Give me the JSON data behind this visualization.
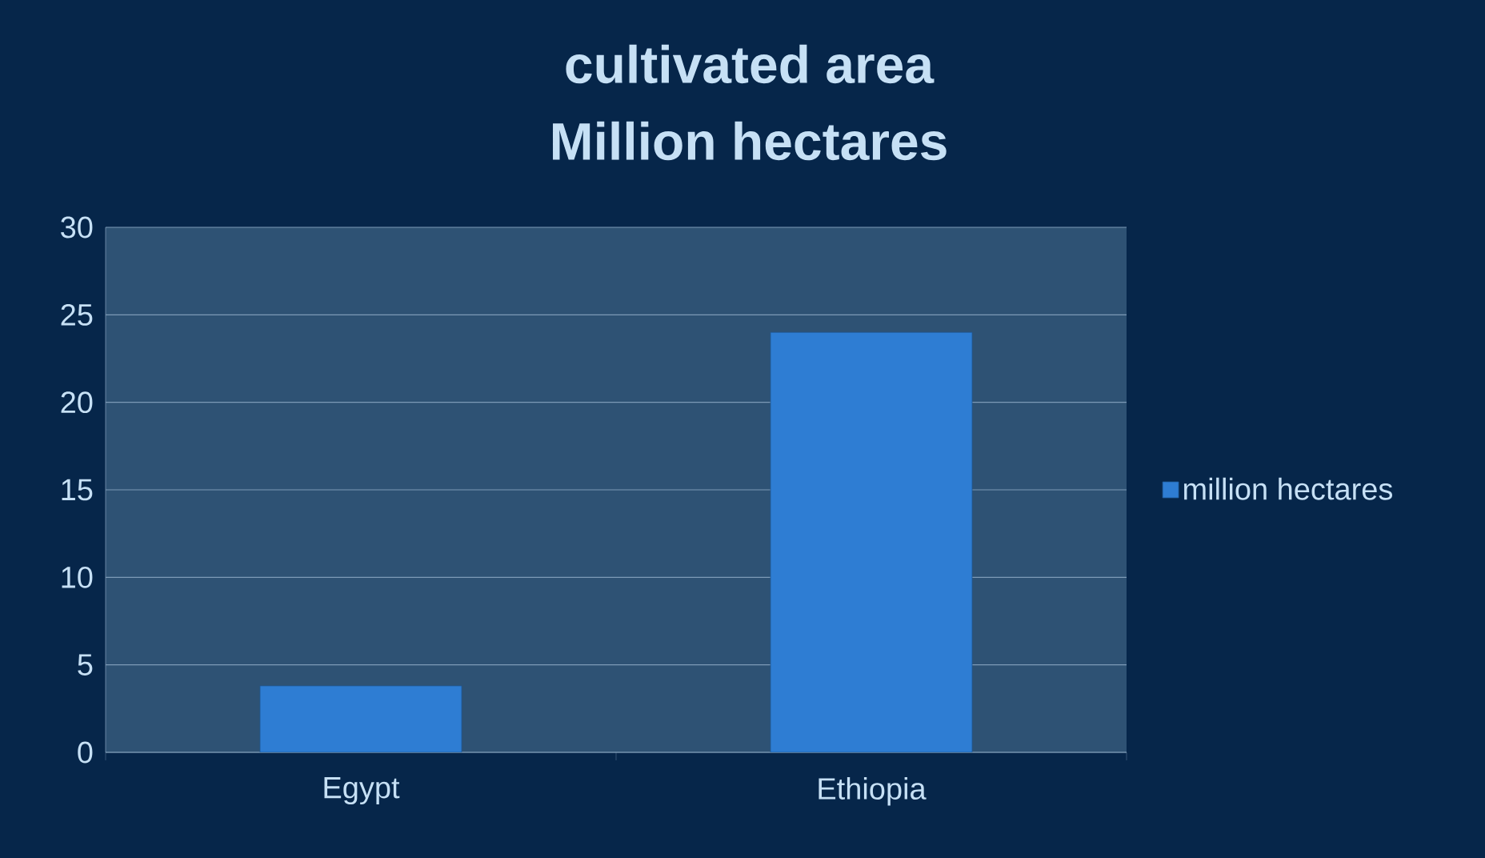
{
  "chart_data": {
    "type": "bar",
    "title": "cultivated area",
    "subtitle": "Million hectares",
    "categories": [
      "Egypt",
      "Ethiopia"
    ],
    "series": [
      {
        "name": "million hectares",
        "color": "#2e7dd3",
        "values": [
          3.8,
          24
        ]
      }
    ],
    "ylim": [
      0,
      30
    ],
    "yticks": [
      0,
      5,
      10,
      15,
      20,
      25,
      30
    ],
    "grid": "y",
    "legend": "right"
  }
}
